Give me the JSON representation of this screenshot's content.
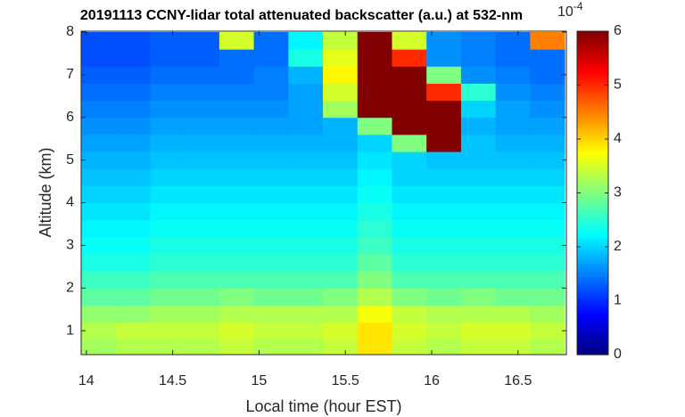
{
  "chart_data": {
    "type": "heatmap",
    "title": "20191113 CCNY-lidar total attenuated backscatter (a.u.) at 532-nm",
    "x_label": "Local time (hour EST)",
    "y_label": "Altitude (km)",
    "colormap": "jet",
    "x": [
      14.07,
      14.27,
      14.47,
      14.67,
      14.87,
      15.07,
      15.27,
      15.47,
      15.67,
      15.87,
      16.07,
      16.27,
      16.47,
      16.67
    ],
    "y": [
      0.6,
      1.0,
      1.4,
      1.8,
      2.2,
      2.6,
      3.0,
      3.4,
      3.8,
      4.2,
      4.6,
      5.0,
      5.4,
      5.8,
      6.2,
      6.6,
      7.0,
      7.4,
      7.8
    ],
    "z": [
      [
        3.2,
        3.3,
        3.3,
        3.3,
        3.4,
        3.3,
        3.3,
        3.4,
        3.9,
        3.4,
        3.3,
        3.4,
        3.4,
        3.3
      ],
      [
        3.3,
        3.4,
        3.4,
        3.4,
        3.5,
        3.4,
        3.4,
        3.5,
        3.9,
        3.5,
        3.4,
        3.5,
        3.5,
        3.4
      ],
      [
        3.1,
        3.1,
        3.2,
        3.2,
        3.3,
        3.3,
        3.3,
        3.3,
        3.7,
        3.4,
        3.3,
        3.3,
        3.3,
        3.2
      ],
      [
        2.8,
        2.8,
        2.9,
        2.9,
        3.0,
        2.9,
        2.9,
        3.0,
        3.3,
        3.0,
        2.9,
        3.0,
        2.9,
        2.9
      ],
      [
        2.6,
        2.6,
        2.7,
        2.7,
        2.7,
        2.7,
        2.7,
        2.7,
        3.0,
        2.7,
        2.7,
        2.7,
        2.7,
        2.7
      ],
      [
        2.4,
        2.4,
        2.5,
        2.5,
        2.5,
        2.5,
        2.5,
        2.5,
        2.8,
        2.5,
        2.5,
        2.5,
        2.5,
        2.5
      ],
      [
        2.3,
        2.3,
        2.4,
        2.4,
        2.4,
        2.4,
        2.4,
        2.4,
        2.6,
        2.4,
        2.4,
        2.4,
        2.4,
        2.4
      ],
      [
        2.2,
        2.2,
        2.3,
        2.3,
        2.3,
        2.3,
        2.3,
        2.3,
        2.5,
        2.3,
        2.3,
        2.3,
        2.3,
        2.3
      ],
      [
        2.1,
        2.1,
        2.2,
        2.2,
        2.2,
        2.2,
        2.2,
        2.2,
        2.4,
        2.2,
        2.2,
        2.2,
        2.2,
        2.2
      ],
      [
        2.0,
        2.0,
        2.1,
        2.1,
        2.1,
        2.1,
        2.1,
        2.1,
        2.3,
        2.1,
        2.1,
        2.1,
        2.1,
        2.1
      ],
      [
        1.9,
        1.9,
        2.0,
        2.0,
        2.0,
        2.0,
        2.0,
        2.0,
        2.2,
        2.0,
        2.0,
        2.0,
        2.0,
        2.0
      ],
      [
        1.8,
        1.8,
        1.9,
        1.9,
        1.9,
        1.9,
        1.9,
        1.9,
        2.1,
        2.0,
        1.9,
        1.9,
        1.9,
        1.9
      ],
      [
        1.7,
        1.7,
        1.8,
        1.8,
        1.8,
        1.8,
        1.8,
        1.8,
        2.0,
        3.0,
        6,
        1.9,
        1.8,
        1.8
      ],
      [
        1.6,
        1.6,
        1.7,
        1.7,
        1.7,
        1.7,
        1.7,
        1.8,
        3.0,
        6,
        6,
        1.8,
        1.7,
        1.7
      ],
      [
        1.5,
        1.5,
        1.6,
        1.6,
        1.6,
        1.6,
        1.7,
        3.2,
        6,
        6,
        6,
        2.0,
        1.7,
        1.6
      ],
      [
        1.4,
        1.4,
        1.5,
        1.5,
        1.5,
        1.5,
        1.7,
        3.5,
        6,
        6,
        5,
        2.5,
        1.6,
        1.5
      ],
      [
        1.3,
        1.3,
        1.4,
        1.4,
        1.4,
        1.5,
        1.8,
        3.8,
        6,
        6,
        3,
        1.6,
        1.5,
        1.4
      ],
      [
        1.2,
        1.2,
        1.3,
        1.3,
        1.4,
        1.4,
        2.4,
        3.6,
        6,
        5,
        1.6,
        1.5,
        1.4,
        1.4
      ],
      [
        1.2,
        1.2,
        1.3,
        1.3,
        3.5,
        1.4,
        2.2,
        3.4,
        6,
        3.5,
        1.6,
        1.5,
        1.4,
        4.5
      ]
    ],
    "xlim": [
      13.97,
      16.78
    ],
    "ylim": [
      0.44,
      8.02
    ],
    "xticks": [
      14,
      14.5,
      15,
      15.5,
      16,
      16.5
    ],
    "yticks": [
      1,
      2,
      3,
      4,
      5,
      6,
      7,
      8
    ],
    "zlim": [
      0,
      6
    ],
    "cticks": [
      0,
      1,
      2,
      3,
      4,
      5,
      6
    ],
    "colorbar_multiplier": {
      "base": "10",
      "exponent": "-4"
    }
  }
}
